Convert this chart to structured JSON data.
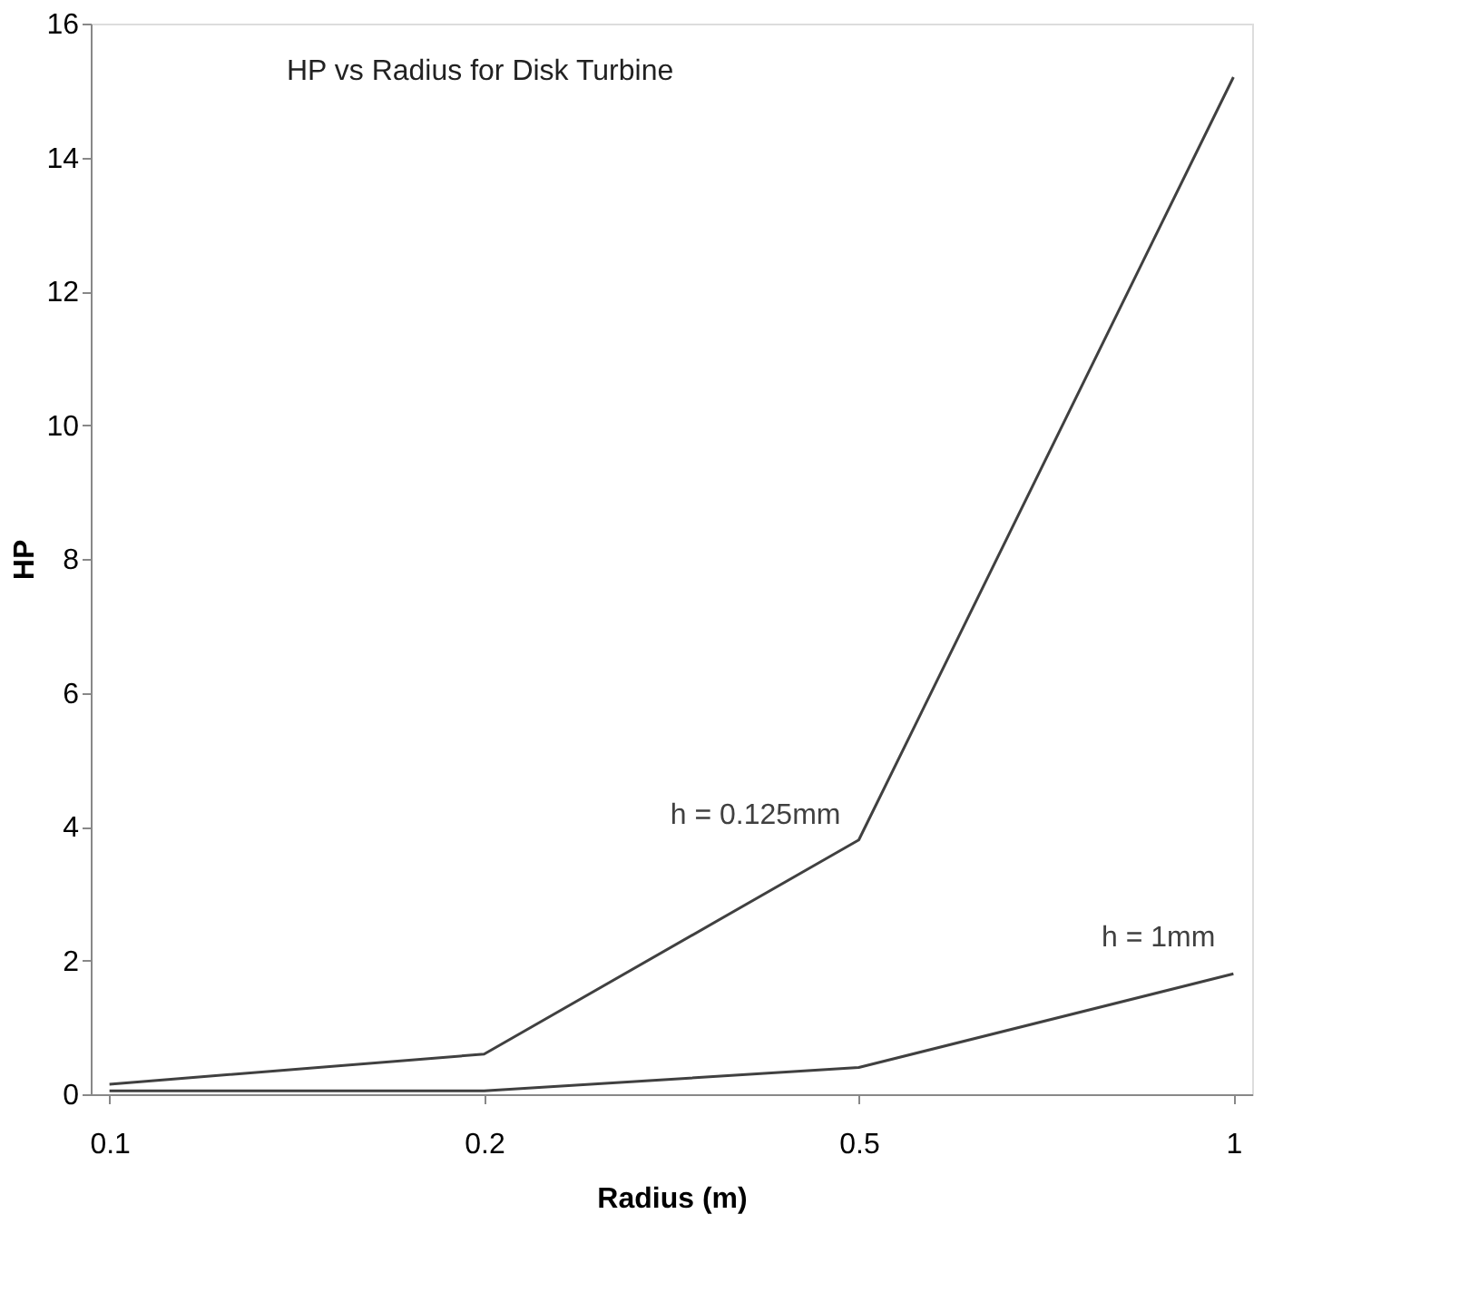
{
  "chart_data": {
    "type": "line",
    "title": "HP vs Radius for Disk Turbine",
    "xlabel": "Radius (m)",
    "ylabel": "HP",
    "categories": [
      "0.1",
      "0.2",
      "0.5",
      "1"
    ],
    "series": [
      {
        "name": "h = 0.125mm",
        "color": "#404040",
        "values": [
          0.15,
          0.6,
          3.8,
          15.2
        ]
      },
      {
        "name": "h = 1mm",
        "color": "#404040",
        "values": [
          0.05,
          0.05,
          0.4,
          1.8
        ]
      }
    ],
    "ylim": [
      0,
      16
    ],
    "yticks": [
      0,
      2,
      4,
      6,
      8,
      10,
      12,
      14,
      16
    ],
    "grid": false,
    "legend": false,
    "marker": "none",
    "line_style": "solid"
  }
}
